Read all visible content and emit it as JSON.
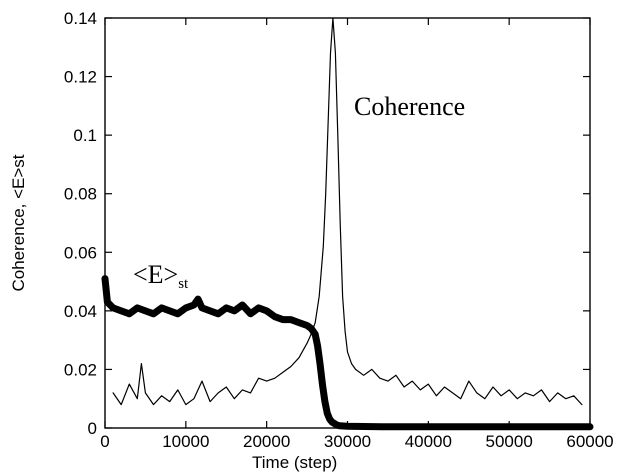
{
  "chart_data": {
    "type": "line",
    "xlabel": "Time (step)",
    "ylabel": "Coherence, <E>st",
    "xlim": [
      0,
      60000
    ],
    "ylim": [
      0,
      0.14
    ],
    "xticks": [
      "0",
      "10000",
      "20000",
      "30000",
      "40000",
      "50000",
      "60000"
    ],
    "yticks": [
      "0",
      "0.02",
      "0.04",
      "0.06",
      "0.08",
      "0.1",
      "0.12",
      "0.14"
    ],
    "grid": false,
    "legend": "none",
    "annotations": {
      "coherence": "Coherence",
      "energy_main": "<E>",
      "energy_sub": "st"
    },
    "series": [
      {
        "key": "coherence",
        "style": "thin",
        "x": [
          1000,
          2000,
          3000,
          4000,
          4500,
          5000,
          6000,
          7000,
          8000,
          9000,
          10000,
          11000,
          12000,
          13000,
          14000,
          15000,
          16000,
          17000,
          18000,
          19000,
          20000,
          21000,
          22000,
          23000,
          24000,
          25000,
          25500,
          26000,
          26500,
          27000,
          27300,
          27600,
          27900,
          28200,
          28500,
          28800,
          29100,
          29400,
          29700,
          30000,
          30500,
          31000,
          32000,
          33000,
          34000,
          35000,
          36000,
          37000,
          38000,
          39000,
          40000,
          41000,
          42000,
          43000,
          44000,
          45000,
          46000,
          47000,
          48000,
          49000,
          50000,
          51000,
          52000,
          53000,
          54000,
          55000,
          56000,
          57000,
          58000,
          59000
        ],
        "y": [
          0.012,
          0.008,
          0.015,
          0.01,
          0.022,
          0.012,
          0.008,
          0.011,
          0.009,
          0.013,
          0.008,
          0.01,
          0.016,
          0.009,
          0.012,
          0.014,
          0.01,
          0.013,
          0.012,
          0.017,
          0.016,
          0.017,
          0.019,
          0.021,
          0.024,
          0.029,
          0.032,
          0.036,
          0.045,
          0.062,
          0.08,
          0.104,
          0.128,
          0.14,
          0.128,
          0.1,
          0.07,
          0.045,
          0.033,
          0.026,
          0.022,
          0.02,
          0.018,
          0.02,
          0.017,
          0.016,
          0.018,
          0.014,
          0.016,
          0.013,
          0.015,
          0.011,
          0.014,
          0.012,
          0.01,
          0.016,
          0.012,
          0.01,
          0.014,
          0.011,
          0.013,
          0.01,
          0.012,
          0.011,
          0.013,
          0.009,
          0.012,
          0.01,
          0.011,
          0.008
        ]
      },
      {
        "key": "energy",
        "style": "thick",
        "x": [
          0,
          300,
          1000,
          2000,
          3000,
          4000,
          5000,
          6000,
          7000,
          8000,
          9000,
          10000,
          11000,
          11500,
          12000,
          13000,
          14000,
          15000,
          16000,
          17000,
          18000,
          19000,
          20000,
          21000,
          22000,
          23000,
          24000,
          25000,
          25500,
          26000,
          26300,
          26600,
          26900,
          27200,
          27500,
          27800,
          28100,
          28400,
          28700,
          29000,
          30000,
          32000,
          35000,
          40000,
          45000,
          50000,
          55000,
          60000
        ],
        "y": [
          0.051,
          0.043,
          0.041,
          0.04,
          0.039,
          0.041,
          0.04,
          0.039,
          0.041,
          0.04,
          0.039,
          0.041,
          0.042,
          0.044,
          0.041,
          0.04,
          0.039,
          0.041,
          0.04,
          0.042,
          0.039,
          0.041,
          0.04,
          0.038,
          0.037,
          0.037,
          0.036,
          0.035,
          0.034,
          0.032,
          0.028,
          0.022,
          0.015,
          0.009,
          0.005,
          0.003,
          0.002,
          0.0015,
          0.001,
          0.0008,
          0.0006,
          0.0005,
          0.0004,
          0.0004,
          0.0004,
          0.0004,
          0.0004,
          0.0004
        ]
      }
    ]
  }
}
